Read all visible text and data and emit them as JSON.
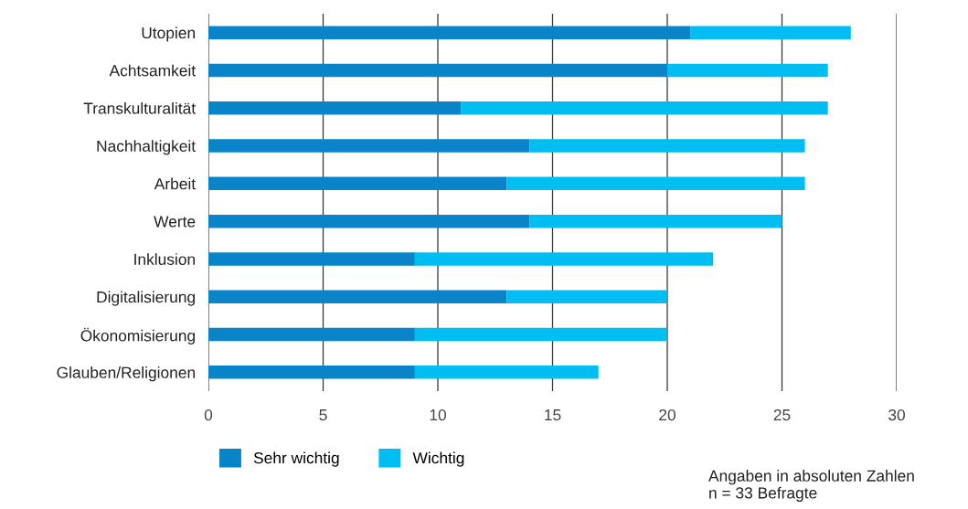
{
  "chart_data": {
    "type": "bar",
    "orientation": "horizontal",
    "stacked": true,
    "categories": [
      "Utopien",
      "Achtsamkeit",
      "Transkulturalität",
      "Nachhaltigkeit",
      "Arbeit",
      "Werte",
      "Inklusion",
      "Digitalisierung",
      "Ökonomisierung",
      "Glauben/Religionen"
    ],
    "series": [
      {
        "name": "Sehr wichtig",
        "color": "#0a84c8",
        "values": [
          21,
          20,
          11,
          14,
          13,
          14,
          9,
          13,
          9,
          9
        ]
      },
      {
        "name": "Wichtig",
        "color": "#00bdf2",
        "values": [
          7,
          7,
          16,
          12,
          13,
          11,
          13,
          7,
          11,
          8
        ]
      }
    ],
    "xlim": [
      0,
      30
    ],
    "xticks": [
      0,
      5,
      10,
      15,
      20,
      25,
      30
    ],
    "grid": "x",
    "legend": "bottom left",
    "annotations": [
      "Angaben in absoluten Zahlen\nn = 33 Befragte"
    ]
  }
}
